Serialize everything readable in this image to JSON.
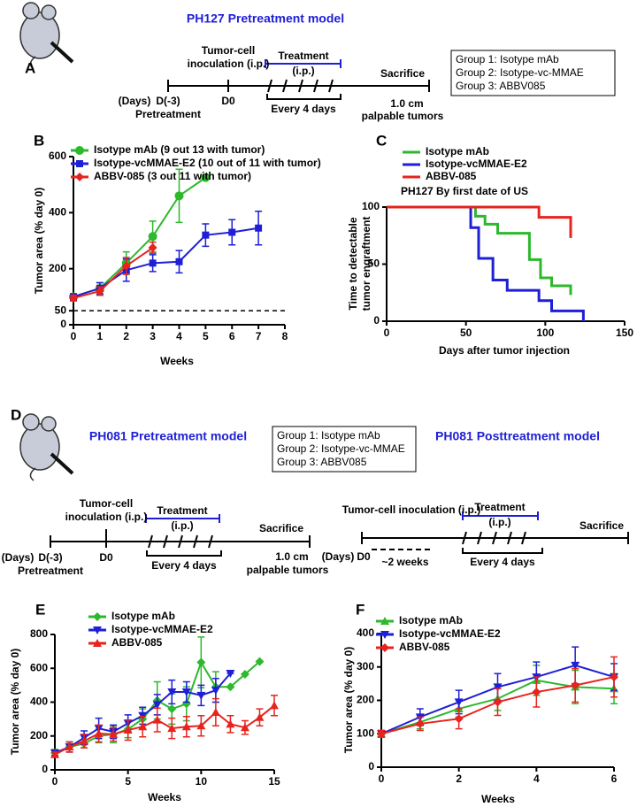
{
  "panel_a": {
    "letter": "A",
    "title": "PH127 Pretreatment model",
    "inoculation": [
      "Tumor-cell",
      "inoculation (i.p.)"
    ],
    "treatment": [
      "Treatment",
      "(i.p.)"
    ],
    "schedule": "Every 4 days",
    "sacrifice": "Sacrifice",
    "days": "(Days)",
    "start": "D(-3)",
    "start_note": "Pretreatment",
    "d0": "D0",
    "endpoint": [
      "1.0 cm",
      "palpable tumors"
    ],
    "groups": [
      "Group 1: Isotype mAb",
      "Group 2: Isotype-vc-MMAE",
      "Group 3: ABBV085"
    ]
  },
  "panel_d": {
    "letter": "D",
    "groups": [
      "Group 1: Isotype mAb",
      "Group 2: Isotype-vc-MMAE",
      "Group 3: ABBV085"
    ],
    "pre": {
      "title": "PH081 Pretreatment model",
      "inoculation": [
        "Tumor-cell",
        "inoculation (i.p.)"
      ],
      "treatment": [
        "Treatment",
        "(i.p.)"
      ],
      "schedule": "Every 4 days",
      "sacrifice": "Sacrifice",
      "days": "(Days)",
      "start": "D(-3)",
      "start_note": "Pretreatment",
      "d0": "D0",
      "endpoint": [
        "1.0 cm",
        "palpable tumors"
      ]
    },
    "post": {
      "title": "PH081 Posttreatment model",
      "inoculation": "Tumor-cell inoculation (i.p.)",
      "treatment": [
        "Treatment",
        "(i.p.)"
      ],
      "schedule": "Every 4 days",
      "sacrifice": "Sacrifice",
      "days": "(Days)",
      "d0": "D0",
      "interval": "~2 weeks"
    }
  },
  "chart_data": [
    {
      "panel": "B",
      "type": "line",
      "xlabel": "Weeks",
      "ylabel": "Tumor area (% day 0)",
      "xlim": [
        0,
        8
      ],
      "xticks": [
        0,
        1,
        2,
        3,
        4,
        5,
        6,
        7,
        8
      ],
      "ylim": [
        0,
        600
      ],
      "yticks": [
        0,
        50,
        200,
        400,
        600
      ],
      "hline": 50,
      "series": [
        {
          "name": "Isotype mAb (9 out 13 with tumor)",
          "color": "#2db82d",
          "marker": "circle",
          "x": [
            0,
            1,
            2,
            3,
            4,
            5
          ],
          "values": [
            100,
            130,
            220,
            315,
            460,
            525
          ],
          "errors": [
            10,
            20,
            40,
            55,
            95,
            0
          ]
        },
        {
          "name": "Isotype-vcMMAE-E2 (10 out of 11 with tumor)",
          "color": "#1f1fd6",
          "marker": "square",
          "x": [
            0,
            1,
            2,
            3,
            4,
            5,
            6,
            7
          ],
          "values": [
            100,
            130,
            195,
            220,
            225,
            320,
            330,
            345
          ],
          "errors": [
            10,
            20,
            40,
            30,
            40,
            40,
            45,
            60
          ]
        },
        {
          "name": "ABBV-085 (3 out 11 with tumor)",
          "color": "#e8231e",
          "marker": "diamond",
          "x": [
            0,
            1,
            2,
            3
          ],
          "values": [
            95,
            120,
            210,
            275
          ],
          "errors": [
            10,
            15,
            30,
            20
          ]
        }
      ]
    },
    {
      "panel": "C",
      "type": "step",
      "title": "PH127 By first date of US",
      "xlabel": "Days after tumor injection",
      "ylabel": [
        "Time to detectable",
        "tumor engraftment"
      ],
      "xlim": [
        0,
        150
      ],
      "xticks": [
        0,
        50,
        100,
        150
      ],
      "ylim": [
        0,
        100
      ],
      "yticks": [
        0,
        50,
        100
      ],
      "series": [
        {
          "name": "Isotype mAb",
          "color": "#2db82d",
          "x": [
            0,
            56,
            62,
            70,
            90,
            97,
            104,
            116
          ],
          "values": [
            100,
            92,
            85,
            77,
            54,
            38,
            31,
            23
          ]
        },
        {
          "name": "Isotype-vcMMAE-E2",
          "color": "#1f1fd6",
          "x": [
            0,
            53,
            58,
            67,
            76,
            96,
            104,
            124
          ],
          "values": [
            100,
            82,
            55,
            36,
            27,
            18,
            9,
            0
          ]
        },
        {
          "name": "ABBV-085",
          "color": "#e8231e",
          "x": [
            0,
            96,
            116
          ],
          "values": [
            100,
            91,
            73
          ]
        }
      ]
    },
    {
      "panel": "E",
      "type": "line",
      "xlabel": "Weeks",
      "ylabel": "Tumor area (% day 0)",
      "xlim": [
        0,
        15
      ],
      "xticks": [
        0,
        5,
        10,
        15
      ],
      "ylim": [
        0,
        800
      ],
      "yticks": [
        0,
        200,
        400,
        600,
        800
      ],
      "series": [
        {
          "name": "Isotype mAb",
          "color": "#2db82d",
          "marker": "diamond",
          "x": [
            0,
            1,
            2,
            3,
            4,
            5,
            6,
            7,
            8,
            9,
            10,
            11,
            12,
            13,
            14
          ],
          "values": [
            100,
            135,
            155,
            200,
            210,
            240,
            300,
            410,
            360,
            390,
            635,
            490,
            490,
            565,
            640
          ],
          "errors": [
            20,
            30,
            25,
            40,
            50,
            50,
            60,
            110,
            90,
            100,
            150,
            90,
            0,
            0,
            0
          ]
        },
        {
          "name": "Isotype-vcMMAE-E2",
          "color": "#1f1fd6",
          "marker": "triangle-down",
          "x": [
            0,
            1,
            2,
            3,
            4,
            5,
            6,
            7,
            8,
            9,
            10,
            11,
            12
          ],
          "values": [
            100,
            135,
            190,
            245,
            225,
            275,
            320,
            385,
            460,
            460,
            440,
            470,
            570
          ],
          "errors": [
            15,
            30,
            40,
            60,
            40,
            50,
            50,
            60,
            70,
            60,
            60,
            70,
            0
          ]
        },
        {
          "name": "ABBV-085",
          "color": "#e8231e",
          "marker": "triangle",
          "x": [
            0,
            1,
            2,
            3,
            4,
            5,
            6,
            7,
            8,
            9,
            10,
            11,
            12,
            13,
            14,
            15
          ],
          "values": [
            90,
            135,
            170,
            215,
            210,
            235,
            255,
            295,
            245,
            255,
            260,
            340,
            270,
            250,
            310,
            380
          ],
          "errors": [
            15,
            30,
            40,
            50,
            40,
            60,
            60,
            70,
            60,
            60,
            60,
            80,
            50,
            40,
            50,
            60
          ]
        }
      ]
    },
    {
      "panel": "F",
      "type": "line",
      "xlabel": "Weeks",
      "ylabel": "Tumor area (% day 0)",
      "xlim": [
        0,
        6
      ],
      "xticks": [
        0,
        2,
        4,
        6
      ],
      "ylim": [
        0,
        400
      ],
      "yticks": [
        0,
        100,
        200,
        300,
        400
      ],
      "series": [
        {
          "name": "Isotype mAb",
          "color": "#2db82d",
          "marker": "triangle",
          "x": [
            0,
            1,
            2,
            3,
            4,
            5,
            6
          ],
          "values": [
            100,
            135,
            175,
            205,
            260,
            240,
            235
          ],
          "errors": [
            10,
            20,
            25,
            35,
            45,
            50,
            45
          ]
        },
        {
          "name": "Isotype-vcMMAE-E2",
          "color": "#1f1fd6",
          "marker": "triangle-down",
          "x": [
            0,
            1,
            2,
            3,
            4,
            5,
            6
          ],
          "values": [
            100,
            150,
            195,
            240,
            270,
            305,
            270
          ],
          "errors": [
            10,
            25,
            35,
            40,
            45,
            55,
            40
          ]
        },
        {
          "name": "ABBV-085",
          "color": "#e8231e",
          "marker": "diamond",
          "x": [
            0,
            1,
            2,
            3,
            4,
            5,
            6
          ],
          "values": [
            100,
            130,
            145,
            195,
            225,
            245,
            270
          ],
          "errors": [
            10,
            20,
            30,
            40,
            45,
            50,
            60
          ]
        }
      ]
    }
  ]
}
